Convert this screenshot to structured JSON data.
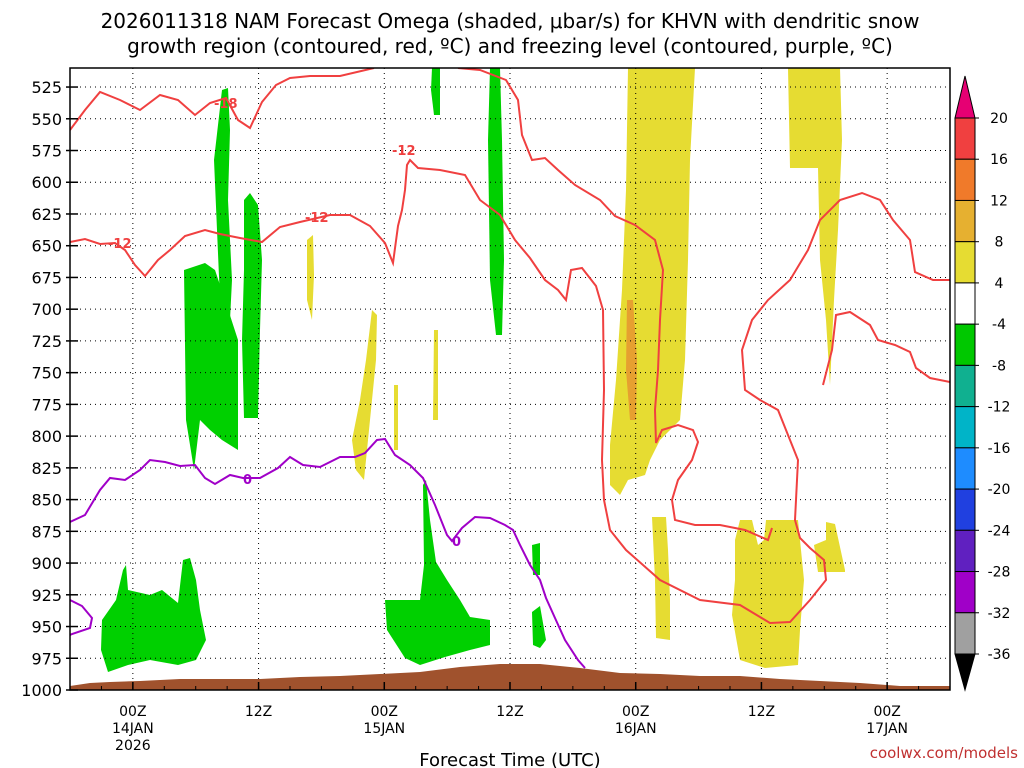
{
  "chart_data": {
    "type": "heatmap",
    "title_lines": [
      "2026011318 NAM Forecast Omega (shaded, μbar/s) for KHVN with dendritic snow",
      "growth region (contoured, red, ºC) and freezing level (contoured, purple, ºC)"
    ],
    "xlabel": "Forecast Time (UTC)",
    "ylabel": "",
    "y_ticks": [
      525,
      550,
      575,
      600,
      625,
      650,
      675,
      700,
      725,
      750,
      775,
      800,
      825,
      850,
      875,
      900,
      925,
      950,
      975,
      1000
    ],
    "ylim": [
      510,
      1000
    ],
    "x_ticks": [
      {
        "hour": 6,
        "lines": [
          "00Z",
          "14JAN",
          "2026"
        ]
      },
      {
        "hour": 18,
        "lines": [
          "12Z"
        ]
      },
      {
        "hour": 30,
        "lines": [
          "00Z",
          "15JAN"
        ]
      },
      {
        "hour": 42,
        "lines": [
          "12Z"
        ]
      },
      {
        "hour": 54,
        "lines": [
          "00Z",
          "16JAN"
        ]
      },
      {
        "hour": 66,
        "lines": [
          "12Z"
        ]
      },
      {
        "hour": 78,
        "lines": [
          "00Z",
          "17JAN"
        ]
      }
    ],
    "xlim": [
      0,
      84
    ],
    "colorbar": {
      "labels": [
        "20",
        "16",
        "12",
        "8",
        "4",
        "-4",
        "-8",
        "-12",
        "-16",
        "-20",
        "-24",
        "-28",
        "-32",
        "-36"
      ],
      "colors": [
        "#e60073",
        "#f04040",
        "#f07a2a",
        "#e6b030",
        "#e6dc32",
        "#ffffff",
        "#00c800",
        "#10b090",
        "#00b4c8",
        "#1e8cff",
        "#2040e0",
        "#6020c0",
        "#a000c8",
        "#a0a0a0",
        "#000000"
      ]
    },
    "colors": {
      "green": "#00d000",
      "yellow": "#e6dc32",
      "orange": "#e6a030",
      "brown": "#a0522d",
      "dgz_red": "#f04040",
      "freeze_purple": "#a000c8"
    },
    "contour_labels": [
      {
        "text": "-18",
        "color": "#f04040"
      },
      {
        "text": "-12",
        "color": "#f04040"
      },
      {
        "text": "-12",
        "color": "#f04040"
      },
      {
        "text": "-12",
        "color": "#f04040"
      },
      {
        "text": "0",
        "color": "#a000c8"
      },
      {
        "text": "0",
        "color": "#a000c8"
      }
    ],
    "credit": "coolwx.com/models"
  }
}
